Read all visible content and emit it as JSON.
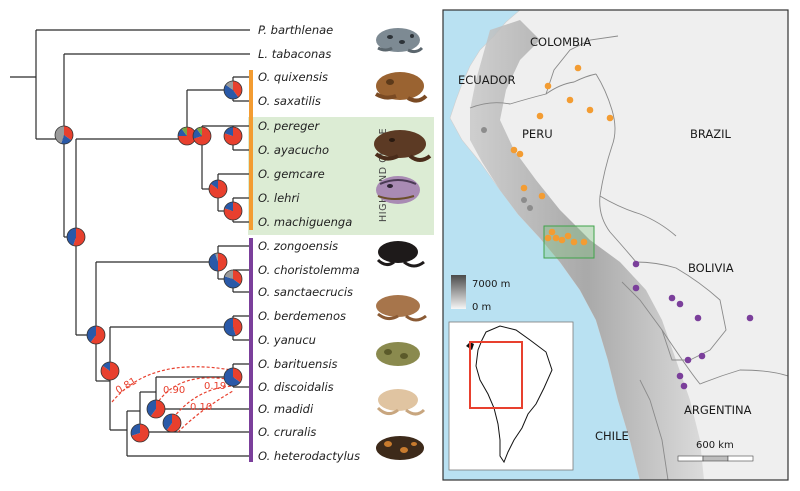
{
  "tree": {
    "tips": [
      {
        "genus": "P.",
        "species": "barthlenae"
      },
      {
        "genus": "L.",
        "species": "tabaconas"
      },
      {
        "genus": "O.",
        "species": "quixensis"
      },
      {
        "genus": "O.",
        "species": "saxatilis"
      },
      {
        "genus": "O.",
        "species": "pereger"
      },
      {
        "genus": "O.",
        "species": "ayacucho"
      },
      {
        "genus": "O.",
        "species": "gemcare"
      },
      {
        "genus": "O.",
        "species": "lehri"
      },
      {
        "genus": "O.",
        "species": "machiguenga"
      },
      {
        "genus": "O.",
        "species": "zongoensis"
      },
      {
        "genus": "O.",
        "species": "choristolemma"
      },
      {
        "genus": "O.",
        "species": "sanctaecrucis"
      },
      {
        "genus": "O.",
        "species": "berdemenos"
      },
      {
        "genus": "O.",
        "species": "yanucu"
      },
      {
        "genus": "O.",
        "species": "barituensis"
      },
      {
        "genus": "O.",
        "species": "discoidalis"
      },
      {
        "genus": "O.",
        "species": "madidi"
      },
      {
        "genus": "O.",
        "species": "cruralis"
      },
      {
        "genus": "O.",
        "species": "heterodactylus"
      }
    ],
    "highland_clade_label": "HIGHLAND CLADE",
    "support_values": [
      "0.81",
      "0.90",
      "0.19",
      "0.10"
    ],
    "colors": {
      "area_red": "#e8402e",
      "area_blue": "#2a59a8",
      "area_green": "#7aa543",
      "area_gray": "#9a9a9a",
      "north_bar": "#f39c32",
      "south_bar": "#7b3f9b",
      "highland_fill": "#dcecd4",
      "ocean": "#b9e1f2"
    }
  },
  "map": {
    "countries": [
      "COLOMBIA",
      "ECUADOR",
      "PERU",
      "BRAZIL",
      "BOLIVIA",
      "CHILE",
      "ARGENTINA"
    ],
    "elevation_legend": {
      "high": "7000 m",
      "low": "0 m"
    },
    "scale_label": "600 km"
  }
}
